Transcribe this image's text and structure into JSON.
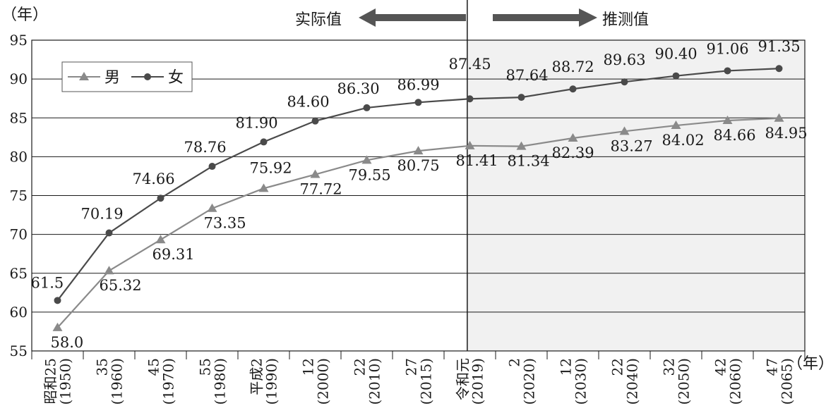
{
  "chart_data": {
    "type": "line",
    "y_unit_label": "（年）",
    "x_unit_label": "（年）",
    "ylim": [
      55,
      95
    ],
    "y_ticks": [
      "55",
      "60",
      "65",
      "70",
      "75",
      "80",
      "85",
      "90",
      "95"
    ],
    "header": {
      "actual": "实际值",
      "projected": "推测值"
    },
    "grid": true,
    "legend_position": "top-left",
    "projection_start_index": 8,
    "x_tick_labels": [
      {
        "top": "昭和25",
        "bottom": "(1950)"
      },
      {
        "top": "35",
        "bottom": "(1960)"
      },
      {
        "top": "45",
        "bottom": "(1970)"
      },
      {
        "top": "55",
        "bottom": "(1980)"
      },
      {
        "top": "平成2",
        "bottom": "(1990)"
      },
      {
        "top": "12",
        "bottom": "(2000)"
      },
      {
        "top": "22",
        "bottom": "(2010)"
      },
      {
        "top": "27",
        "bottom": "(2015)"
      },
      {
        "top": "令和元",
        "bottom": "(2019)"
      },
      {
        "top": "2",
        "bottom": "(2020)"
      },
      {
        "top": "12",
        "bottom": "(2030)"
      },
      {
        "top": "22",
        "bottom": "(2040)"
      },
      {
        "top": "32",
        "bottom": "(2050)"
      },
      {
        "top": "42",
        "bottom": "(2060)"
      },
      {
        "top": "47",
        "bottom": "(2065)"
      }
    ],
    "series": [
      {
        "name": "男",
        "marker": "triangle",
        "color": "#8a8a8a",
        "values": [
          58.0,
          65.32,
          69.31,
          73.35,
          75.92,
          77.72,
          79.55,
          80.75,
          81.41,
          81.34,
          82.39,
          83.27,
          84.02,
          84.66,
          84.95
        ],
        "labels": [
          "58.0",
          "65.32",
          "69.31",
          "73.35",
          "75.92",
          "77.72",
          "79.55",
          "80.75",
          "81.41",
          "81.34",
          "82.39",
          "83.27",
          "84.02",
          "84.66",
          "84.95"
        ]
      },
      {
        "name": "女",
        "marker": "circle",
        "color": "#4a4a4a",
        "values": [
          61.5,
          70.19,
          74.66,
          78.76,
          81.9,
          84.6,
          86.3,
          86.99,
          87.45,
          87.64,
          88.72,
          89.63,
          90.4,
          91.06,
          91.35
        ],
        "labels": [
          "61.5",
          "70.19",
          "74.66",
          "78.76",
          "81.90",
          "84.60",
          "86.30",
          "86.99",
          "87.45",
          "87.64",
          "88.72",
          "89.63",
          "90.40",
          "91.06",
          "91.35"
        ]
      }
    ]
  }
}
